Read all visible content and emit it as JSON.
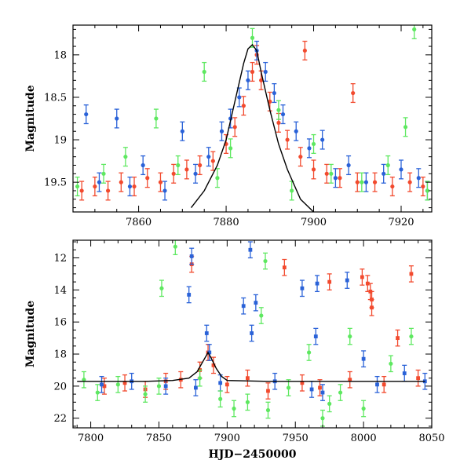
{
  "chart_data": [
    {
      "type": "scatter",
      "xlabel": "",
      "ylabel": "Magnitude",
      "xlim": [
        7845,
        7927
      ],
      "ylim": [
        19.85,
        17.65
      ],
      "y_inverted": true,
      "x_ticks": [
        7860,
        7880,
        7900,
        7920
      ],
      "y_ticks": [
        18,
        18.5,
        19,
        19.5
      ],
      "x_tick_labels": [
        "7860",
        "7880",
        "7900",
        "7920"
      ],
      "y_tick_labels": [
        "18",
        "18.5",
        "19",
        "19.5"
      ],
      "colors": {
        "red": "#f24a2e",
        "blue": "#2a62d8",
        "green": "#5ee860",
        "model": "#000000"
      },
      "series": [
        {
          "color": "red",
          "x": [
            7847,
            7850,
            7853,
            7856,
            7859,
            7862,
            7865,
            7868,
            7871,
            7874,
            7877,
            7880,
            7882,
            7884,
            7886,
            7887,
            7888,
            7890,
            7892,
            7894,
            7897,
            7900,
            7903,
            7906,
            7910,
            7914,
            7918,
            7922,
            7925,
            7898,
            7909
          ],
          "y": [
            19.6,
            19.55,
            19.6,
            19.5,
            19.55,
            19.45,
            19.5,
            19.4,
            19.35,
            19.3,
            19.25,
            19.05,
            18.85,
            18.6,
            18.2,
            18.0,
            18.3,
            18.55,
            18.8,
            19.0,
            19.2,
            19.35,
            19.4,
            19.45,
            19.5,
            19.5,
            19.55,
            19.5,
            19.55,
            17.95,
            18.45
          ]
        },
        {
          "color": "blue",
          "x": [
            7848,
            7851,
            7855,
            7858,
            7861,
            7866,
            7870,
            7873,
            7876,
            7879,
            7881,
            7883,
            7885,
            7887,
            7889,
            7891,
            7893,
            7896,
            7899,
            7902,
            7905,
            7908,
            7912,
            7916,
            7920,
            7924,
            7926
          ],
          "y": [
            18.7,
            19.5,
            18.75,
            19.55,
            19.3,
            19.6,
            18.9,
            19.4,
            19.2,
            18.9,
            18.75,
            18.5,
            18.3,
            17.95,
            18.2,
            18.45,
            18.7,
            18.9,
            19.1,
            19.0,
            19.45,
            19.3,
            19.5,
            19.4,
            19.35,
            19.45,
            19.6
          ]
        },
        {
          "color": "green",
          "x": [
            7846,
            7852,
            7857,
            7864,
            7869,
            7875,
            7878,
            7881,
            7886,
            7892,
            7895,
            7900,
            7904,
            7911,
            7917,
            7921,
            7923,
            7926
          ],
          "y": [
            19.55,
            19.4,
            19.2,
            18.75,
            19.3,
            18.2,
            19.45,
            19.1,
            17.8,
            18.65,
            19.6,
            19.05,
            19.4,
            19.5,
            19.3,
            18.85,
            17.7,
            19.6
          ]
        }
      ],
      "model_curve": {
        "x": [
          7872,
          7875,
          7878,
          7880,
          7882,
          7884,
          7885,
          7886,
          7887,
          7888,
          7890,
          7892,
          7894,
          7897,
          7900
        ],
        "y": [
          19.8,
          19.6,
          19.3,
          19.0,
          18.55,
          18.1,
          17.93,
          17.88,
          17.95,
          18.2,
          18.65,
          19.05,
          19.35,
          19.7,
          19.85
        ]
      }
    },
    {
      "type": "scatter",
      "xlabel": "HJD−2450000",
      "ylabel": "Magnitude",
      "xlim": [
        7787,
        8050
      ],
      "ylim": [
        22.6,
        10.9
      ],
      "y_inverted": true,
      "x_ticks": [
        7800,
        7850,
        7900,
        7950,
        8000,
        8050
      ],
      "y_ticks": [
        12,
        14,
        16,
        18,
        20,
        22
      ],
      "x_tick_labels": [
        "7800",
        "7850",
        "7900",
        "7950",
        "8000",
        "8050"
      ],
      "y_tick_labels": [
        "12",
        "14",
        "16",
        "18",
        "20",
        "22"
      ],
      "colors": {
        "red": "#f24a2e",
        "blue": "#2a62d8",
        "green": "#5ee860",
        "model": "#000000"
      },
      "series": [
        {
          "color": "red",
          "x": [
            7810,
            7825,
            7840,
            7855,
            7866,
            7874,
            7880,
            7886,
            7890,
            7900,
            7915,
            7930,
            7942,
            7955,
            7968,
            7975,
            7990,
            7999,
            8003,
            8005,
            8006,
            8006,
            8015,
            8025,
            8035,
            8040
          ],
          "y": [
            20.0,
            19.8,
            20.2,
            19.7,
            19.6,
            12.4,
            19.0,
            17.9,
            18.7,
            19.9,
            19.5,
            20.3,
            12.6,
            19.8,
            20.1,
            13.5,
            19.6,
            13.2,
            13.6,
            14.1,
            14.6,
            15.1,
            19.9,
            17.0,
            13.0,
            19.5
          ]
        },
        {
          "color": "blue",
          "x": [
            7808,
            7830,
            7855,
            7872,
            7874,
            7877,
            7885,
            7887,
            7895,
            7912,
            7917,
            7918,
            7921,
            7935,
            7955,
            7962,
            7965,
            7966,
            7970,
            7988,
            8000,
            8010,
            8030,
            8045
          ],
          "y": [
            19.9,
            19.7,
            20.0,
            14.3,
            11.9,
            20.1,
            16.7,
            17.9,
            19.8,
            15.0,
            11.5,
            16.7,
            14.8,
            19.7,
            13.9,
            20.2,
            16.9,
            13.6,
            20.4,
            13.4,
            18.3,
            19.9,
            19.2,
            19.7
          ]
        },
        {
          "color": "green",
          "x": [
            7795,
            7805,
            7820,
            7840,
            7850,
            7852,
            7862,
            7880,
            7895,
            7905,
            7915,
            7925,
            7928,
            7930,
            7945,
            7960,
            7970,
            7975,
            7983,
            7990,
            8000,
            8020,
            8035
          ],
          "y": [
            19.6,
            20.4,
            19.9,
            20.5,
            20.0,
            13.9,
            11.3,
            19.5,
            20.8,
            21.4,
            21.0,
            15.6,
            12.2,
            21.5,
            20.1,
            17.9,
            22.0,
            21.1,
            20.4,
            16.9,
            21.4,
            18.6,
            16.9
          ]
        }
      ],
      "model_curve": {
        "x": [
          7790,
          7810,
          7840,
          7860,
          7872,
          7878,
          7882,
          7885,
          7886,
          7888,
          7892,
          7896,
          7900,
          7930,
          7970,
          8010,
          8045
        ],
        "y": [
          19.7,
          19.7,
          19.7,
          19.65,
          19.5,
          19.1,
          18.5,
          18.05,
          17.9,
          18.2,
          18.9,
          19.4,
          19.65,
          19.7,
          19.7,
          19.7,
          19.7
        ]
      }
    }
  ]
}
